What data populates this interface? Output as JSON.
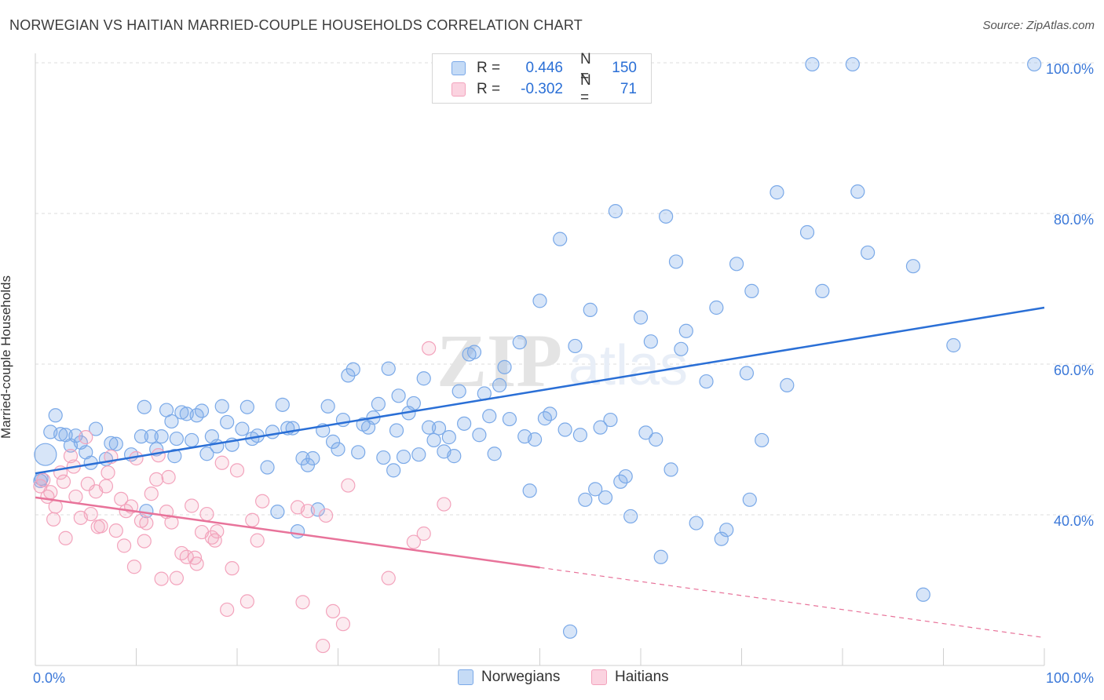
{
  "title": "NORWEGIAN VS HAITIAN MARRIED-COUPLE HOUSEHOLDS CORRELATION CHART",
  "source": "Source: ZipAtlas.com",
  "watermark": "ZIPatlas",
  "legend_stats": [
    {
      "series": "Norwegians",
      "r_label": "R =",
      "r_value": "0.446",
      "n_label": "N =",
      "n_value": "150",
      "color": "#7aa9e8"
    },
    {
      "series": "Haitians",
      "r_label": "R =",
      "r_value": "-0.302",
      "n_label": "N =",
      "n_value": "71",
      "color": "#f3a3bc"
    }
  ],
  "chart_data": {
    "type": "scatter",
    "ylabel": "Married-couple Households",
    "xlim": [
      0,
      100
    ],
    "ylim": [
      20,
      100
    ],
    "x_tick_labels": [
      "0.0%",
      "100.0%"
    ],
    "y_tick_labels": [
      "40.0%",
      "60.0%",
      "80.0%",
      "100.0%"
    ],
    "y_ticks": [
      40,
      60,
      80,
      100
    ],
    "grid": true,
    "legend_position": "bottom",
    "series": [
      {
        "name": "Norwegians",
        "color": "#7aa9e8",
        "line_color": "#2a6fd6",
        "trend": {
          "x": [
            0,
            100
          ],
          "y": [
            45.5,
            67.5
          ],
          "dashed_from": null
        },
        "points": [
          [
            1.0,
            48.0
          ],
          [
            0.5,
            44.5
          ],
          [
            1.5,
            51.0
          ],
          [
            2.0,
            53.2
          ],
          [
            2.5,
            50.7
          ],
          [
            3.0,
            50.6
          ],
          [
            3.5,
            49.2
          ],
          [
            4.0,
            50.5
          ],
          [
            4.5,
            49.6
          ],
          [
            5.0,
            48.3
          ],
          [
            5.5,
            46.9
          ],
          [
            6.0,
            51.4
          ],
          [
            7.0,
            47.4
          ],
          [
            8.0,
            49.4
          ],
          [
            9.5,
            48.0
          ],
          [
            10.5,
            50.4
          ],
          [
            10.8,
            54.3
          ],
          [
            11.0,
            40.5
          ],
          [
            11.5,
            50.4
          ],
          [
            12.0,
            48.7
          ],
          [
            12.5,
            50.4
          ],
          [
            13.0,
            53.9
          ],
          [
            13.5,
            52.4
          ],
          [
            14.0,
            50.1
          ],
          [
            14.5,
            53.6
          ],
          [
            15.0,
            53.4
          ],
          [
            15.5,
            49.9
          ],
          [
            16.0,
            53.2
          ],
          [
            16.5,
            53.8
          ],
          [
            17.0,
            48.1
          ],
          [
            17.5,
            50.4
          ],
          [
            18.0,
            49.1
          ],
          [
            18.5,
            54.4
          ],
          [
            19.0,
            52.3
          ],
          [
            19.5,
            49.3
          ],
          [
            20.5,
            51.4
          ],
          [
            21.0,
            54.3
          ],
          [
            21.5,
            50.1
          ],
          [
            22.0,
            50.5
          ],
          [
            23.0,
            46.3
          ],
          [
            23.5,
            51.0
          ],
          [
            24.0,
            40.4
          ],
          [
            24.5,
            54.6
          ],
          [
            25.0,
            51.5
          ],
          [
            25.5,
            51.5
          ],
          [
            26.0,
            37.8
          ],
          [
            26.5,
            47.5
          ],
          [
            27.0,
            46.6
          ],
          [
            27.5,
            47.5
          ],
          [
            28.0,
            40.7
          ],
          [
            28.5,
            51.2
          ],
          [
            29.0,
            54.4
          ],
          [
            29.5,
            49.7
          ],
          [
            30.0,
            48.7
          ],
          [
            30.5,
            52.6
          ],
          [
            31.0,
            58.5
          ],
          [
            31.5,
            59.3
          ],
          [
            32.0,
            48.3
          ],
          [
            32.5,
            52.0
          ],
          [
            33.0,
            51.6
          ],
          [
            33.5,
            52.9
          ],
          [
            34.0,
            54.7
          ],
          [
            34.5,
            47.6
          ],
          [
            35.0,
            59.4
          ],
          [
            35.5,
            45.9
          ],
          [
            36.0,
            55.8
          ],
          [
            36.5,
            47.7
          ],
          [
            37.0,
            53.5
          ],
          [
            37.5,
            54.8
          ],
          [
            38.0,
            48.0
          ],
          [
            38.5,
            58.1
          ],
          [
            39.0,
            51.6
          ],
          [
            39.5,
            49.9
          ],
          [
            40.0,
            51.5
          ],
          [
            40.5,
            48.4
          ],
          [
            41.0,
            50.3
          ],
          [
            41.5,
            47.8
          ],
          [
            42.0,
            56.4
          ],
          [
            42.5,
            52.1
          ],
          [
            43.0,
            61.3
          ],
          [
            43.5,
            61.6
          ],
          [
            44.0,
            50.6
          ],
          [
            44.5,
            56.1
          ],
          [
            45.0,
            53.1
          ],
          [
            45.5,
            48.1
          ],
          [
            46.0,
            57.2
          ],
          [
            46.5,
            59.6
          ],
          [
            47.0,
            52.7
          ],
          [
            48.0,
            62.9
          ],
          [
            48.5,
            50.4
          ],
          [
            49.0,
            43.2
          ],
          [
            49.5,
            50.0
          ],
          [
            50.0,
            68.4
          ],
          [
            50.5,
            52.8
          ],
          [
            51.0,
            53.4
          ],
          [
            52.0,
            76.6
          ],
          [
            52.5,
            51.3
          ],
          [
            53.0,
            24.5
          ],
          [
            53.5,
            62.4
          ],
          [
            54.0,
            50.6
          ],
          [
            54.5,
            42.0
          ],
          [
            55.0,
            67.2
          ],
          [
            55.5,
            43.4
          ],
          [
            56.0,
            51.6
          ],
          [
            56.5,
            42.3
          ],
          [
            57.0,
            52.6
          ],
          [
            57.5,
            80.3
          ],
          [
            58.0,
            44.4
          ],
          [
            58.5,
            45.1
          ],
          [
            59.0,
            39.8
          ],
          [
            60.0,
            66.2
          ],
          [
            60.5,
            50.9
          ],
          [
            61.0,
            63.0
          ],
          [
            61.5,
            50.0
          ],
          [
            62.0,
            34.4
          ],
          [
            62.5,
            79.6
          ],
          [
            63.0,
            46.0
          ],
          [
            63.5,
            73.6
          ],
          [
            64.0,
            62.0
          ],
          [
            64.5,
            64.4
          ],
          [
            65.5,
            38.9
          ],
          [
            66.5,
            57.7
          ],
          [
            67.5,
            67.5
          ],
          [
            68.0,
            36.8
          ],
          [
            68.5,
            38.0
          ],
          [
            69.5,
            73.3
          ],
          [
            70.5,
            58.8
          ],
          [
            70.8,
            42.0
          ],
          [
            71.0,
            69.7
          ],
          [
            72.0,
            49.9
          ],
          [
            73.5,
            82.8
          ],
          [
            74.5,
            57.2
          ],
          [
            76.5,
            77.5
          ],
          [
            77.0,
            99.8
          ],
          [
            78.0,
            69.7
          ],
          [
            81.0,
            99.8
          ],
          [
            81.5,
            82.9
          ],
          [
            82.5,
            74.8
          ],
          [
            87.0,
            73.0
          ],
          [
            88.0,
            29.4
          ],
          [
            91.0,
            62.5
          ],
          [
            99.0,
            99.8
          ],
          [
            0.6,
            44.8
          ],
          [
            7.5,
            49.5
          ],
          [
            13.8,
            47.8
          ],
          [
            35.8,
            51.2
          ]
        ]
      },
      {
        "name": "Haitians",
        "color": "#f3a3bc",
        "line_color": "#e8739a",
        "trend": {
          "x": [
            0,
            100
          ],
          "y": [
            42.3,
            23.7
          ],
          "dashed_from": 50
        },
        "points": [
          [
            0.5,
            43.8
          ],
          [
            0.8,
            44.6
          ],
          [
            1.2,
            42.4
          ],
          [
            1.5,
            43.0
          ],
          [
            1.8,
            39.4
          ],
          [
            2.0,
            41.1
          ],
          [
            2.5,
            45.6
          ],
          [
            2.8,
            44.4
          ],
          [
            3.0,
            36.9
          ],
          [
            3.5,
            47.8
          ],
          [
            3.8,
            46.4
          ],
          [
            4.0,
            42.4
          ],
          [
            4.5,
            39.6
          ],
          [
            5.0,
            50.3
          ],
          [
            5.2,
            44.1
          ],
          [
            5.5,
            40.1
          ],
          [
            6.0,
            43.1
          ],
          [
            6.2,
            38.4
          ],
          [
            6.5,
            38.5
          ],
          [
            7.0,
            43.8
          ],
          [
            7.2,
            45.6
          ],
          [
            7.5,
            47.7
          ],
          [
            8.0,
            37.9
          ],
          [
            8.5,
            42.1
          ],
          [
            8.8,
            35.9
          ],
          [
            9.0,
            40.5
          ],
          [
            9.5,
            41.1
          ],
          [
            9.8,
            33.1
          ],
          [
            10.0,
            47.5
          ],
          [
            10.5,
            39.2
          ],
          [
            10.8,
            36.5
          ],
          [
            11.0,
            38.9
          ],
          [
            11.5,
            42.8
          ],
          [
            12.0,
            44.7
          ],
          [
            12.2,
            47.9
          ],
          [
            12.5,
            31.5
          ],
          [
            13.0,
            40.4
          ],
          [
            13.2,
            45.0
          ],
          [
            13.5,
            39.0
          ],
          [
            14.0,
            31.6
          ],
          [
            14.5,
            34.9
          ],
          [
            15.0,
            34.4
          ],
          [
            15.5,
            41.2
          ],
          [
            15.8,
            34.3
          ],
          [
            16.0,
            33.5
          ],
          [
            16.5,
            37.7
          ],
          [
            17.0,
            40.1
          ],
          [
            17.5,
            37.0
          ],
          [
            17.8,
            36.6
          ],
          [
            18.0,
            37.8
          ],
          [
            18.5,
            46.9
          ],
          [
            19.0,
            27.4
          ],
          [
            19.5,
            32.9
          ],
          [
            20.0,
            45.9
          ],
          [
            21.0,
            28.5
          ],
          [
            21.5,
            39.3
          ],
          [
            22.0,
            36.6
          ],
          [
            22.5,
            41.8
          ],
          [
            26.0,
            41.0
          ],
          [
            26.5,
            28.4
          ],
          [
            27.0,
            40.5
          ],
          [
            28.5,
            22.6
          ],
          [
            28.8,
            39.9
          ],
          [
            29.5,
            27.2
          ],
          [
            30.5,
            25.5
          ],
          [
            31.0,
            43.9
          ],
          [
            35.0,
            31.6
          ],
          [
            37.5,
            36.4
          ],
          [
            38.5,
            37.5
          ],
          [
            39.0,
            62.1
          ],
          [
            40.5,
            41.4
          ]
        ]
      }
    ]
  }
}
